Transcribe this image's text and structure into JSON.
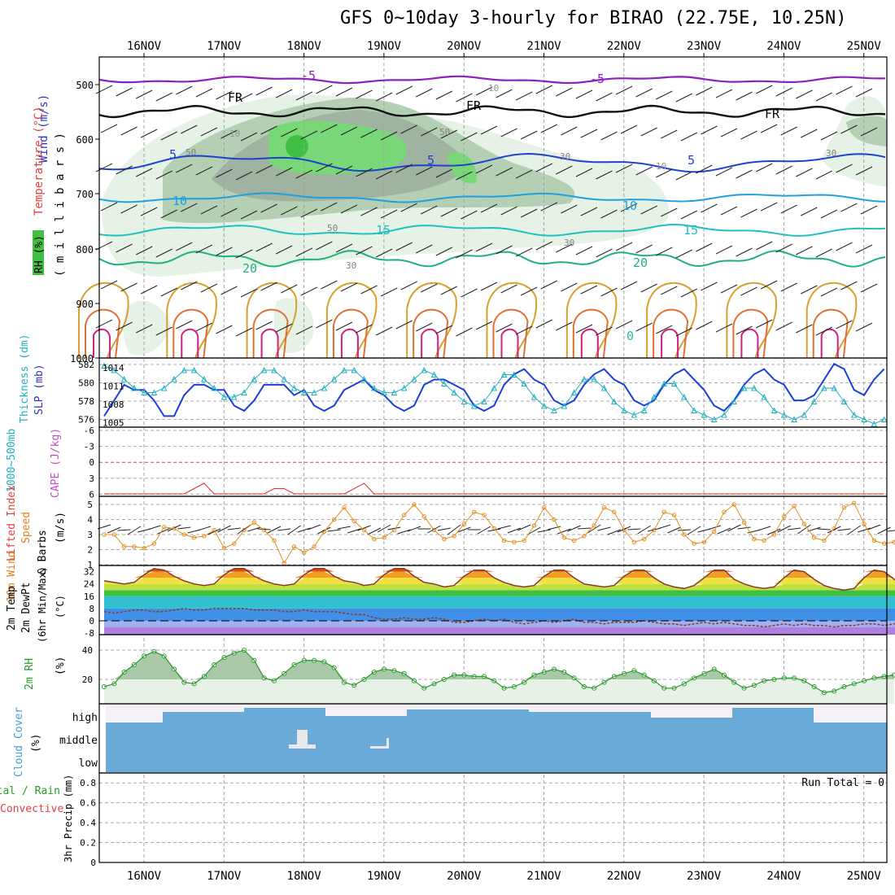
{
  "title": "GFS 0~10day 3-hourly for BIRAO (22.75E, 10.25N)",
  "dates": [
    "16NOV",
    "17NOV",
    "18NOV",
    "19NOV",
    "20NOV",
    "21NOV",
    "22NOV",
    "23NOV",
    "24NOV",
    "25NOV"
  ],
  "panels": {
    "upper": {
      "ylabel_wind": "Wind (m/s)",
      "ylabel_temp": "Temperature (°C)",
      "ylabel_rh": "RH (%)",
      "ylabel_units": "( m i l l i b a r s )",
      "yticks": [
        "500",
        "600",
        "700",
        "800",
        "900",
        "1000"
      ],
      "contour_labels": {
        "t_minus5": "-5",
        "fr": "FR",
        "t5": "5",
        "t10": "10",
        "t15": "15",
        "t20": "20",
        "t0": "0",
        "rh10": "10",
        "rh30": "30",
        "rh50": "50"
      }
    },
    "thick": {
      "ylabel_a": "1000~500mb",
      "ylabel_b": "Thickness (dm)",
      "ylabel_c": "SLP (mb)",
      "left_ticks": [
        "582",
        "580",
        "578",
        "576"
      ],
      "right_ticks": [
        "1014",
        "1011",
        "1008",
        "1005"
      ]
    },
    "li": {
      "ylabel_a": "Lifted Index",
      "ylabel_b": "CAPE (J/kg)",
      "ticks": [
        "-6",
        "-3",
        "0",
        "3",
        "6"
      ]
    },
    "wind10": {
      "ylabel_a": "10m Wind",
      "ylabel_b": "Speed",
      "ylabel_c": "& Barbs",
      "ylabel_d": "(m/s)",
      "ticks": [
        "5",
        "4",
        "3",
        "2",
        "1"
      ]
    },
    "temp2m": {
      "ylabel_a": "2m Temp",
      "ylabel_b": "2m DewPt",
      "ylabel_c": "(6hr Min/Max)",
      "ylabel_d": "(°C)",
      "ticks": [
        "32",
        "24",
        "16",
        "8",
        "0",
        "-8"
      ]
    },
    "rh2m": {
      "ylabel_a": "2m RH",
      "ylabel_b": "(%)",
      "ticks": [
        "40",
        "20"
      ]
    },
    "cloud": {
      "ylabel_a": "Cloud Cover",
      "ylabel_b": "(%)",
      "levels": [
        "high",
        "middle",
        "low"
      ]
    },
    "precip": {
      "ylabel_a": "Total / Rain",
      "ylabel_b": "Convective",
      "ylabel_c": "3hr Precip (mm)",
      "ticks": [
        "0.8",
        "0.6",
        "0.4",
        "0.2",
        "0"
      ],
      "run_total": "Run Total = 0"
    }
  },
  "colors": {
    "rh_light": "#e6f2e6",
    "rh_mid": "#b4cfb4",
    "rh_dark": "#a0b2a0",
    "rh_green": "#40c040",
    "slp": "#1a3fd6",
    "thick": "#22b0c0",
    "wind10": "#e09020",
    "rh2m": "#2a9a2a",
    "cloud": "#6aaad8"
  },
  "chart_data": [
    {
      "type": "line",
      "title": "1000~500mb Thickness / SLP",
      "x": [
        "15NOV12",
        "15NOV15",
        "15NOV18",
        "15NOV21",
        "16NOV00",
        "16NOV03",
        "16NOV06",
        "16NOV09",
        "16NOV12",
        "16NOV15",
        "16NOV18",
        "16NOV21",
        "17NOV00",
        "17NOV03",
        "17NOV06",
        "17NOV09",
        "17NOV12",
        "17NOV15",
        "17NOV18",
        "17NOV21",
        "18NOV00",
        "18NOV03",
        "18NOV06",
        "18NOV09",
        "18NOV12",
        "18NOV15",
        "18NOV18",
        "18NOV21",
        "19NOV00",
        "19NOV03",
        "19NOV06",
        "19NOV09",
        "19NOV12",
        "19NOV15",
        "19NOV18",
        "19NOV21",
        "20NOV00",
        "20NOV03",
        "20NOV06",
        "20NOV09",
        "20NOV12",
        "20NOV15",
        "20NOV18",
        "20NOV21",
        "21NOV00",
        "21NOV03",
        "21NOV06",
        "21NOV09",
        "21NOV12",
        "21NOV15",
        "21NOV18",
        "21NOV21",
        "22NOV00",
        "22NOV03",
        "22NOV06",
        "22NOV09",
        "22NOV12",
        "22NOV15",
        "22NOV18",
        "22NOV21",
        "23NOV00",
        "23NOV03",
        "23NOV06",
        "23NOV09",
        "23NOV12",
        "23NOV15",
        "23NOV18",
        "23NOV21",
        "24NOV00",
        "24NOV03",
        "24NOV06",
        "24NOV09",
        "24NOV12",
        "24NOV15",
        "24NOV18",
        "24NOV21",
        "25NOV00",
        "25NOV03",
        "25NOV06"
      ],
      "series": [
        {
          "name": "SLP",
          "axis": "right",
          "values": [
            1005,
            1008,
            1011,
            1010,
            1010,
            1008,
            1005,
            1005,
            1009,
            1011,
            1011,
            1010,
            1010,
            1007,
            1006,
            1008,
            1011,
            1011,
            1011,
            1009,
            1010,
            1007,
            1006,
            1007,
            1010,
            1011,
            1012,
            1010,
            1009,
            1007,
            1006,
            1007,
            1011,
            1012,
            1012,
            1011,
            1010,
            1007,
            1006,
            1007,
            1011,
            1013,
            1014,
            1012,
            1011,
            1008,
            1007,
            1008,
            1011,
            1013,
            1014,
            1012,
            1011,
            1008,
            1007,
            1008,
            1011,
            1013,
            1014,
            1012,
            1010,
            1007,
            1006,
            1008,
            1011,
            1013,
            1014,
            1012,
            1011,
            1008,
            1008,
            1009,
            1012,
            1015,
            1014,
            1010,
            1009,
            1012,
            1014
          ]
        },
        {
          "name": "Thickness",
          "axis": "left",
          "values": [
            582,
            581.5,
            580.5,
            579.5,
            579,
            579,
            579.5,
            580.5,
            581.5,
            581.5,
            580.5,
            579.5,
            578.5,
            578.5,
            579,
            580.5,
            581.5,
            581.5,
            580.5,
            579.5,
            579,
            579,
            579.5,
            580.5,
            581.5,
            581.5,
            580.5,
            579.5,
            579,
            579,
            579.5,
            580.5,
            581.5,
            581,
            580,
            579,
            578,
            577.5,
            578,
            579.5,
            581,
            581,
            580,
            578.5,
            577.5,
            577,
            577.5,
            579,
            580.5,
            580.5,
            579.5,
            578,
            577,
            576.5,
            577,
            578.5,
            580,
            580,
            578.5,
            577,
            576.5,
            576,
            576.5,
            578,
            579.5,
            579.5,
            578.5,
            577,
            576.5,
            576,
            576.5,
            578,
            579.5,
            579.5,
            578,
            576.5,
            576,
            575.5,
            576
          ]
        }
      ],
      "ylim_left": [
        575.5,
        582.5
      ],
      "ylim_right": [
        1003.5,
        1015.5
      ]
    },
    {
      "type": "line",
      "title": "Lifted Index / CAPE",
      "series": [
        {
          "name": "Lifted Index",
          "values": [
            6,
            6,
            6,
            6,
            6,
            6,
            6,
            6,
            6,
            5,
            4,
            6,
            6,
            6,
            6,
            6,
            6,
            5,
            5,
            6,
            6,
            6,
            6,
            6,
            6,
            5,
            4,
            6,
            6,
            6,
            6,
            6,
            6,
            6,
            6,
            6,
            6,
            6,
            6,
            6,
            6,
            6,
            6,
            6,
            6,
            6,
            6,
            6,
            6,
            6,
            6,
            6,
            6,
            6,
            6,
            6,
            6,
            6,
            6,
            6,
            6,
            6,
            6,
            6,
            6,
            6,
            6,
            6,
            6,
            6,
            6,
            6,
            6,
            6,
            6,
            6,
            6,
            6,
            6
          ]
        }
      ],
      "ylim": [
        6,
        -6
      ]
    },
    {
      "type": "line",
      "title": "10m Wind Speed",
      "series": [
        {
          "name": "10m Wind Speed",
          "values": [
            3,
            3,
            2.2,
            2.2,
            2.1,
            2.4,
            3.5,
            3.4,
            3,
            2.8,
            2.9,
            3.3,
            2.1,
            2.4,
            3.3,
            3.8,
            3.3,
            2.6,
            1.1,
            2.2,
            1.8,
            2.2,
            3.2,
            4,
            4.8,
            3.9,
            3.3,
            2.7,
            2.8,
            3.3,
            4.3,
            5,
            4.2,
            3.3,
            2.7,
            2.9,
            3.7,
            4.5,
            4.3,
            3.4,
            2.6,
            2.5,
            2.6,
            3.6,
            4.8,
            4,
            2.8,
            2.6,
            2.9,
            3.6,
            4.8,
            4.5,
            3.3,
            2.5,
            2.7,
            3.3,
            4.5,
            4.3,
            3,
            2.4,
            2.5,
            3.2,
            4.5,
            5,
            3.8,
            2.7,
            2.6,
            3,
            4.2,
            4.9,
            3.7,
            2.8,
            2.6,
            3.4,
            4.8,
            5.1,
            3.7,
            2.6,
            2.4,
            2.5,
            3.4,
            4.3
          ]
        }
      ],
      "ylim": [
        1,
        5.5
      ]
    },
    {
      "type": "area",
      "title": "2m Temp / 2m DewPt",
      "series": [
        {
          "name": "2m Temp",
          "values": [
            26,
            25,
            24,
            25,
            30,
            34,
            33,
            29,
            26,
            24,
            23,
            24,
            30,
            34,
            34,
            29,
            26,
            24,
            23,
            24,
            30,
            34,
            34,
            29,
            26,
            25,
            23,
            24,
            30,
            34,
            34,
            29,
            25,
            24,
            22,
            23,
            29,
            33,
            33,
            28,
            25,
            23,
            22,
            23,
            29,
            33,
            33,
            28,
            24,
            23,
            22,
            23,
            29,
            33,
            33,
            28,
            24,
            22,
            21,
            23,
            28,
            33,
            33,
            27,
            24,
            22,
            21,
            22,
            28,
            33,
            32,
            27,
            23,
            21,
            20,
            21,
            28,
            33,
            32,
            27,
            23,
            21,
            18,
            21
          ]
        },
        {
          "name": "2m DewPt",
          "values": [
            6,
            5,
            6,
            7,
            7,
            6,
            6,
            7,
            8,
            7,
            7,
            8,
            8,
            8,
            8,
            7,
            7,
            7,
            6,
            6,
            7,
            6,
            6,
            6,
            5,
            4,
            4,
            2,
            1,
            1,
            2,
            1,
            1,
            2,
            1,
            -1,
            -1,
            0,
            1,
            0,
            1,
            -1,
            -2,
            -1,
            0,
            -1,
            0,
            1,
            -1,
            -1,
            -2,
            -1,
            -1,
            -1,
            0,
            -1,
            -2,
            -2,
            -3,
            -2,
            -1,
            -2,
            -1,
            -2,
            -3,
            -3,
            -4,
            -3,
            -2,
            -3,
            -2,
            -3,
            -3,
            -4,
            -3,
            -3,
            -2,
            -2,
            -3,
            -2,
            -1
          ]
        }
      ],
      "ylim": [
        -9,
        36
      ]
    },
    {
      "type": "area",
      "title": "2m RH",
      "series": [
        {
          "name": "2m RH",
          "values": [
            15,
            17,
            25,
            30,
            36,
            39,
            36,
            27,
            18,
            17,
            22,
            30,
            35,
            38,
            40,
            33,
            21,
            19,
            24,
            30,
            33,
            33,
            32,
            28,
            18,
            16,
            20,
            25,
            27,
            26,
            24,
            19,
            14,
            17,
            20,
            23,
            23,
            22,
            22,
            19,
            14,
            15,
            18,
            23,
            25,
            27,
            25,
            21,
            15,
            14,
            18,
            22,
            24,
            26,
            23,
            19,
            14,
            14,
            17,
            21,
            24,
            27,
            23,
            18,
            14,
            16,
            19,
            20,
            21,
            21,
            19,
            15,
            11,
            12,
            15,
            17,
            19,
            21,
            22,
            23
          ]
        }
      ],
      "ylim": [
        5,
        45
      ]
    },
    {
      "type": "bar",
      "title": "3hr Precip",
      "values": [],
      "ylim": [
        0,
        0.9
      ]
    }
  ]
}
